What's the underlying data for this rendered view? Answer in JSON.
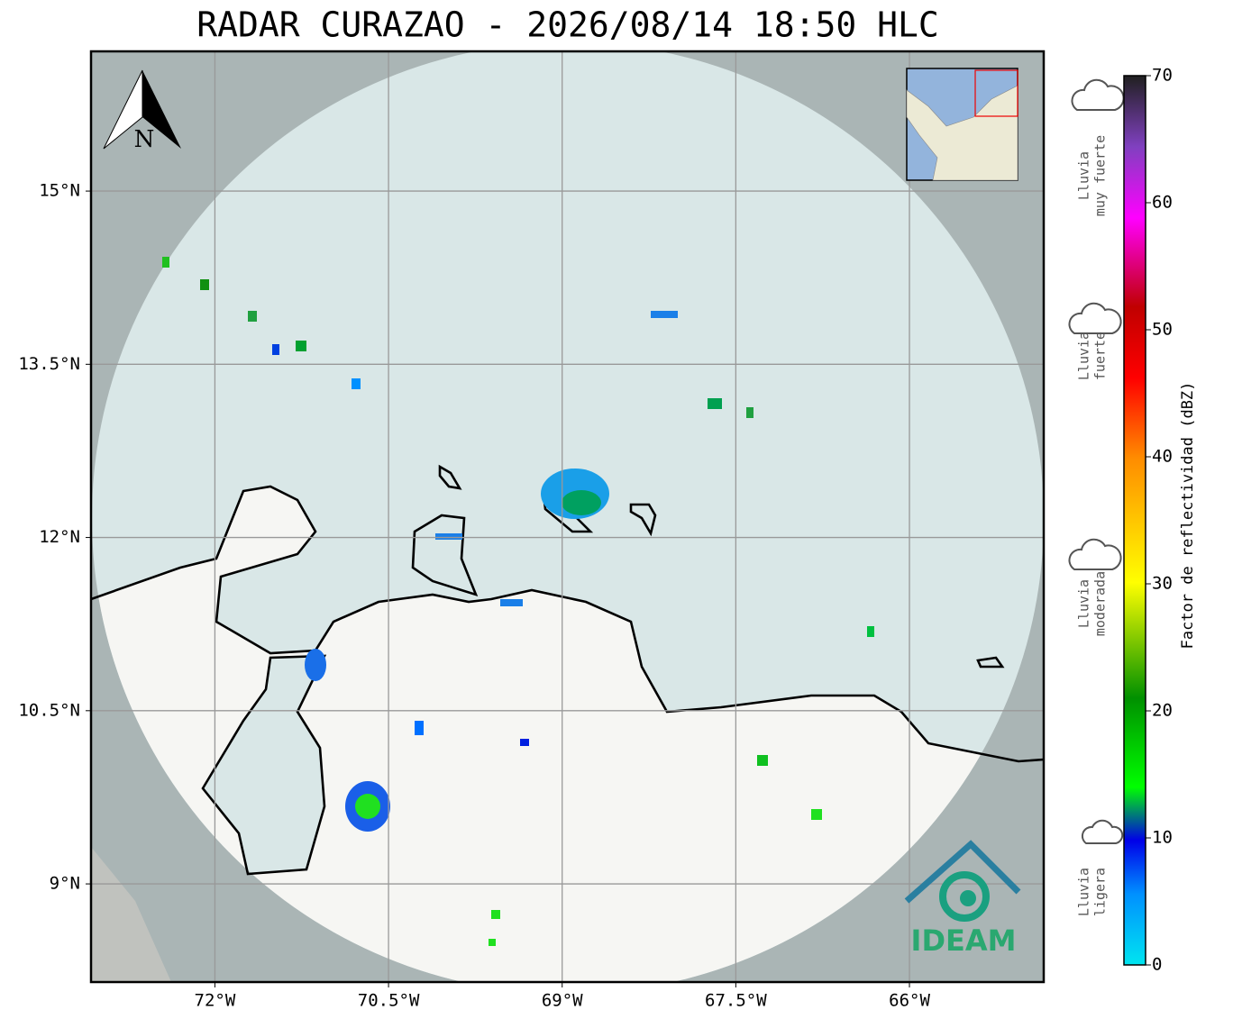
{
  "map": {
    "title": "RADAR CURAZAO - 2026/08/14 18:50 HLC",
    "north_label": "N",
    "xlim": [
      -73.07,
      -64.84
    ],
    "ylim": [
      8.15,
      16.21
    ],
    "lon_ticks": [
      {
        "value": -72,
        "label": "72°W"
      },
      {
        "value": -70.5,
        "label": "70.5°W"
      },
      {
        "value": -69,
        "label": "69°W"
      },
      {
        "value": -67.5,
        "label": "67.5°W"
      },
      {
        "value": -66,
        "label": "66°W"
      }
    ],
    "lat_ticks": [
      {
        "value": 9,
        "label": "9°N"
      },
      {
        "value": 10.5,
        "label": "10.5°N"
      },
      {
        "value": 12,
        "label": "12°N"
      },
      {
        "value": 13.5,
        "label": "13.5°N"
      },
      {
        "value": 15,
        "label": "15°N"
      }
    ],
    "grid": true,
    "logo": "IDEAM",
    "colorbar": {
      "label": "Factor de reflectividad (dBZ)",
      "lim": [
        0,
        70
      ],
      "ticks": [
        0,
        10,
        20,
        30,
        40,
        50,
        60,
        70
      ]
    },
    "rain_classes": [
      {
        "lines": [
          "Lluvia",
          "muy fuerte"
        ]
      },
      {
        "lines": [
          "Lluvia",
          "fuerte"
        ]
      },
      {
        "lines": [
          "Lluvia",
          "moderada"
        ]
      },
      {
        "lines": [
          "Lluvia",
          "ligera"
        ]
      }
    ]
  }
}
